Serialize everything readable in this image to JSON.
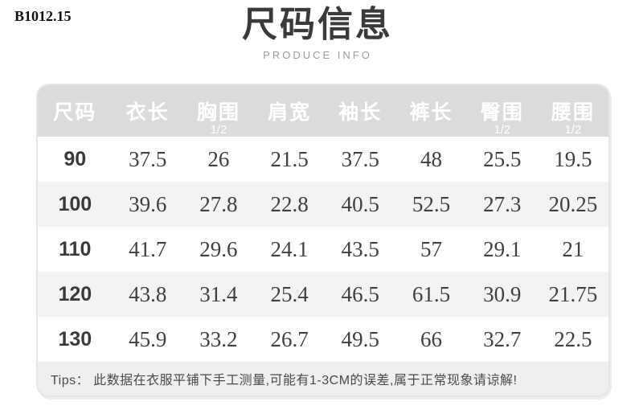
{
  "page": {
    "product_code": "B1012.15",
    "title": "尺码信息",
    "subtitle": "PRODUCE INFO"
  },
  "colors": {
    "header_bg": "#dbdbdb",
    "header_text": "#ffffff",
    "zebra_row_bg": "#f3f3f3",
    "tips_bg": "#efefef",
    "body_text": "#3f3f3f"
  },
  "chart_data": {
    "type": "table",
    "title": "尺码信息",
    "subtitle": "PRODUCE INFO",
    "columns": [
      {
        "label": "尺码",
        "sub": ""
      },
      {
        "label": "衣长",
        "sub": ""
      },
      {
        "label": "胸围",
        "sub": "1/2"
      },
      {
        "label": "肩宽",
        "sub": ""
      },
      {
        "label": "袖长",
        "sub": ""
      },
      {
        "label": "裤长",
        "sub": ""
      },
      {
        "label": "臀围",
        "sub": "1/2"
      },
      {
        "label": "腰围",
        "sub": "1/2"
      }
    ],
    "rows": [
      {
        "size": "90",
        "values": [
          "37.5",
          "26",
          "21.5",
          "37.5",
          "48",
          "25.5",
          "19.5"
        ]
      },
      {
        "size": "100",
        "values": [
          "39.6",
          "27.8",
          "22.8",
          "40.5",
          "52.5",
          "27.3",
          "20.25"
        ]
      },
      {
        "size": "110",
        "values": [
          "41.7",
          "29.6",
          "24.1",
          "43.5",
          "57",
          "29.1",
          "21"
        ]
      },
      {
        "size": "120",
        "values": [
          "43.8",
          "31.4",
          "25.4",
          "46.5",
          "61.5",
          "30.9",
          "21.75"
        ]
      },
      {
        "size": "130",
        "values": [
          "45.9",
          "33.2",
          "26.7",
          "49.5",
          "66",
          "32.7",
          "22.5"
        ]
      }
    ],
    "note": "Tips： 此数据在衣服平铺下手工测量,可能有1-3CM的误差,属于正常现象请谅解!"
  }
}
